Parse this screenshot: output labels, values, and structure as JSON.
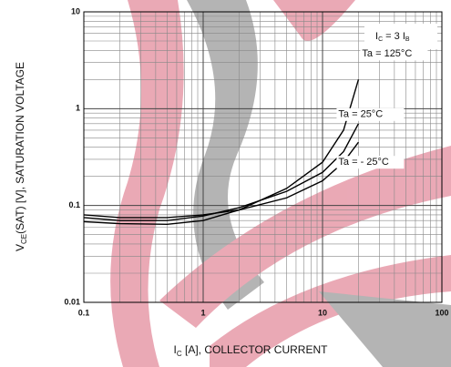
{
  "chart_data": {
    "type": "line",
    "log_x": true,
    "log_y": true,
    "grid": true,
    "xlabel": [
      "I",
      "C",
      " [A], COLLECTOR CURRENT"
    ],
    "ylabel": [
      "V",
      "CE",
      "(SAT) [V], SATURATION VOLTAGE"
    ],
    "annotation": [
      "I",
      "C",
      " = 3 I",
      "B"
    ],
    "xlim": [
      0.1,
      100
    ],
    "ylim": [
      0.01,
      10
    ],
    "xticks": [
      0.1,
      1,
      10,
      100
    ],
    "yticks": [
      0.01,
      0.1,
      1,
      10
    ],
    "xminorticks": [
      0.2,
      0.3,
      0.4,
      0.5,
      0.6,
      0.7,
      0.8,
      0.9,
      2,
      3,
      4,
      5,
      6,
      7,
      8,
      9,
      20,
      30,
      40,
      50,
      60,
      70,
      80,
      90
    ],
    "yminorticks": [
      0.02,
      0.03,
      0.04,
      0.05,
      0.06,
      0.07,
      0.08,
      0.09,
      0.2,
      0.3,
      0.4,
      0.5,
      0.6,
      0.7,
      0.8,
      0.9,
      2,
      3,
      4,
      5,
      6,
      7,
      8,
      9
    ],
    "x": [
      0.1,
      0.2,
      0.5,
      1,
      2,
      5,
      10,
      15,
      20
    ],
    "series": [
      {
        "name": "Ta = 125°C",
        "color": "#000000",
        "values": [
          0.068,
          0.065,
          0.064,
          0.07,
          0.09,
          0.15,
          0.28,
          0.6,
          2.0
        ]
      },
      {
        "name": "Ta = 25°C",
        "color": "#000000",
        "values": [
          0.075,
          0.07,
          0.07,
          0.078,
          0.095,
          0.14,
          0.22,
          0.36,
          0.7
        ]
      },
      {
        "name": "Ta = - 25°C",
        "color": "#000000",
        "values": [
          0.08,
          0.075,
          0.075,
          0.08,
          0.09,
          0.12,
          0.18,
          0.28,
          0.45
        ]
      }
    ]
  }
}
